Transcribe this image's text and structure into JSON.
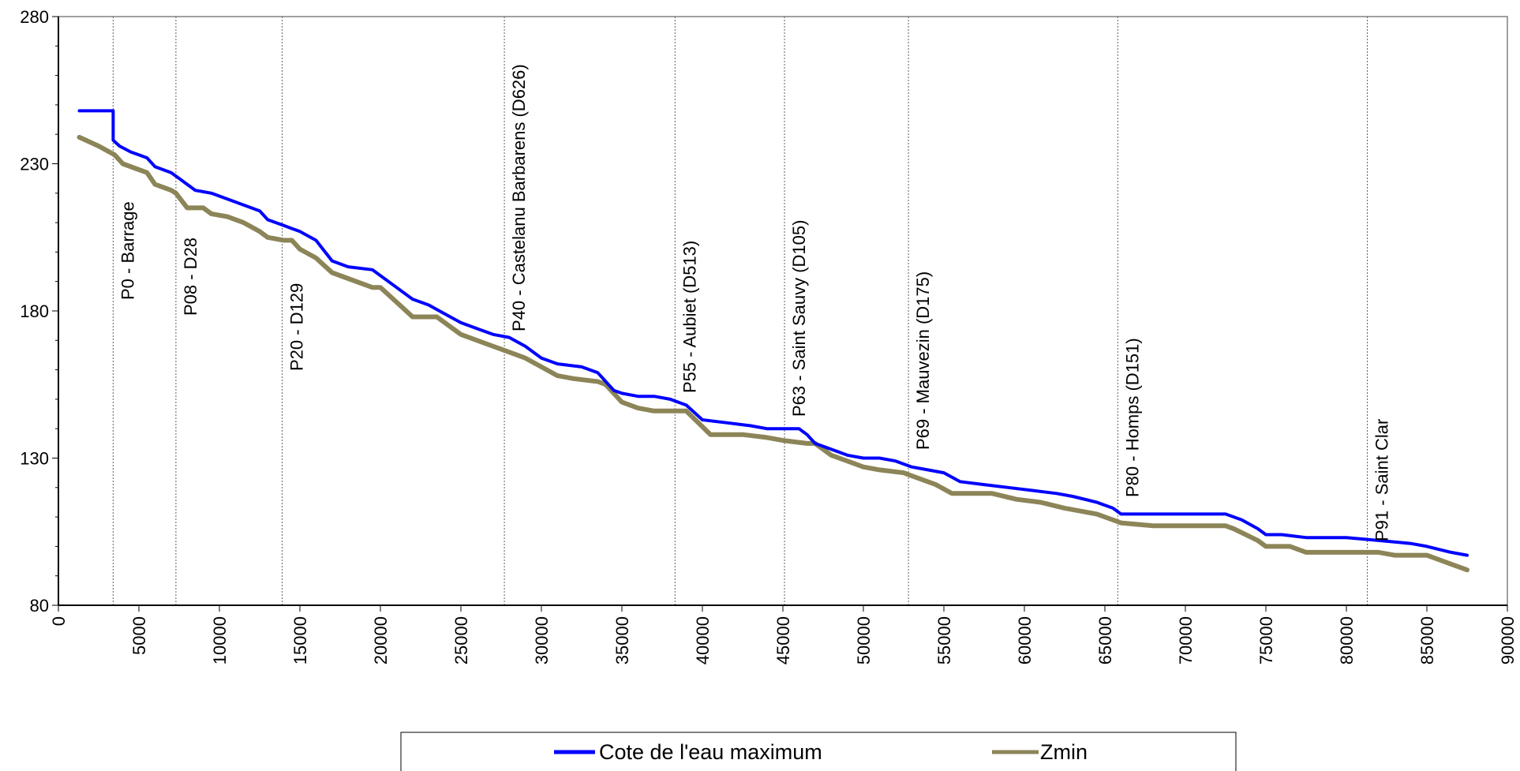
{
  "chart_data": {
    "type": "line",
    "xlim": [
      0,
      90000
    ],
    "ylim": [
      80,
      280
    ],
    "x_ticks": [
      "0",
      "5000",
      "10000",
      "15000",
      "20000",
      "25000",
      "30000",
      "35000",
      "40000",
      "45000",
      "50000",
      "55000",
      "60000",
      "65000",
      "70000",
      "75000",
      "80000",
      "85000",
      "90000"
    ],
    "y_ticks": [
      "80",
      "130",
      "180",
      "230",
      "280"
    ],
    "grid": false,
    "legend_position": "bottom",
    "reference_lines": [
      {
        "x": 3400,
        "label": "P0 - Barrage"
      },
      {
        "x": 7300,
        "label": "P08 - D28"
      },
      {
        "x": 13900,
        "label": "P20 - D129"
      },
      {
        "x": 27700,
        "label": "P40 - Castelanu Barbarens (D626)"
      },
      {
        "x": 38300,
        "label": "P55 - Aubiet (D513)"
      },
      {
        "x": 45100,
        "label": "P63 - Saint Sauvy (D105)"
      },
      {
        "x": 52800,
        "label": "P69 - Mauvezin (D175)"
      },
      {
        "x": 65800,
        "label": "P80 - Homps (D151)"
      },
      {
        "x": 81300,
        "label": "P91 - Saint Clar"
      }
    ],
    "series": [
      {
        "name": "Cote de l'eau maximum",
        "color": "#0000ff",
        "x": [
          1300,
          3400,
          3400,
          3800,
          4500,
          5000,
          5500,
          6000,
          7000,
          7500,
          8500,
          9500,
          10500,
          11500,
          12500,
          13000,
          14000,
          14500,
          15000,
          16000,
          17000,
          18000,
          19500,
          20000,
          21000,
          22000,
          23000,
          24000,
          25000,
          26000,
          27000,
          28000,
          29000,
          30000,
          31000,
          32500,
          33500,
          34500,
          35000,
          36000,
          37000,
          38000,
          39000,
          40000,
          41500,
          43000,
          44000,
          45000,
          46000,
          46500,
          47000,
          48000,
          49000,
          50000,
          51000,
          52000,
          53000,
          54000,
          55000,
          56000,
          57500,
          59000,
          60500,
          62000,
          63000,
          64500,
          65500,
          66000,
          70000,
          72500,
          73500,
          74500,
          75000,
          76000,
          77500,
          80000,
          82000,
          84000,
          85000,
          86500,
          87500
        ],
        "y": [
          248,
          248,
          238,
          236,
          234,
          233,
          232,
          229,
          227,
          225,
          221,
          220,
          218,
          216,
          214,
          211,
          209,
          208,
          207,
          204,
          197,
          195,
          194,
          192,
          188,
          184,
          182,
          179,
          176,
          174,
          172,
          171,
          168,
          164,
          162,
          161,
          159,
          153,
          152,
          151,
          151,
          150,
          148,
          143,
          142,
          141,
          140,
          140,
          140,
          138,
          135,
          133,
          131,
          130,
          130,
          129,
          127,
          126,
          125,
          122,
          121,
          120,
          119,
          118,
          117,
          115,
          113,
          111,
          111,
          111,
          109,
          106,
          104,
          104,
          103,
          103,
          102,
          101,
          100,
          98,
          97
        ],
        "step": true
      },
      {
        "name": "Zmin",
        "color": "#8c8558",
        "x": [
          1300,
          2500,
          3500,
          4000,
          5000,
          5500,
          6000,
          7000,
          7300,
          8000,
          9000,
          9500,
          10500,
          11500,
          12500,
          13000,
          14000,
          14500,
          15000,
          16000,
          17000,
          18000,
          19500,
          20000,
          21000,
          22000,
          23500,
          24000,
          25000,
          26000,
          27000,
          28000,
          29000,
          30000,
          31000,
          32000,
          33500,
          34000,
          35000,
          36000,
          37000,
          38500,
          39000,
          40500,
          42500,
          44000,
          45000,
          46500,
          47000,
          47500,
          48000,
          49000,
          50000,
          51000,
          52500,
          53000,
          54500,
          55500,
          58000,
          59500,
          61000,
          62500,
          64500,
          65500,
          66000,
          68000,
          72500,
          73000,
          74500,
          75000,
          76500,
          77500,
          82000,
          83000,
          85000,
          86500,
          87500
        ],
        "y": [
          239,
          236,
          233,
          230,
          228,
          227,
          223,
          221,
          220,
          215,
          215,
          213,
          212,
          210,
          207,
          205,
          204,
          204,
          201,
          198,
          193,
          191,
          188,
          188,
          183,
          178,
          178,
          176,
          172,
          170,
          168,
          166,
          164,
          161,
          158,
          157,
          156,
          155,
          149,
          147,
          146,
          146,
          146,
          138,
          138,
          137,
          136,
          135,
          135,
          133,
          131,
          129,
          127,
          126,
          125,
          124,
          121,
          118,
          118,
          116,
          115,
          113,
          111,
          109,
          108,
          107,
          107,
          106,
          102,
          100,
          100,
          98,
          98,
          97,
          97,
          94,
          92
        ],
        "step": true
      }
    ]
  },
  "legend": {
    "items": [
      {
        "label": "Cote de l'eau maximum",
        "color": "#0000ff"
      },
      {
        "label": "Zmin",
        "color": "#8c8558"
      }
    ]
  }
}
